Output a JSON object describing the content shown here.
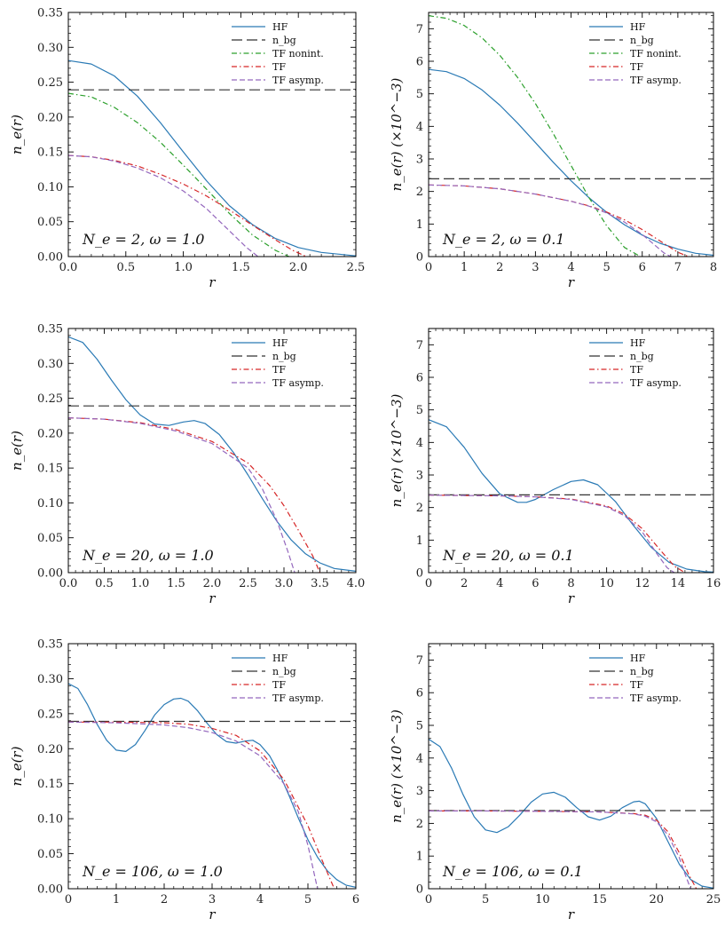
{
  "colors": {
    "HF": "#2a7ab5",
    "nbg": "#333333",
    "TF_nonint": "#2ca02c",
    "TF": "#d62728",
    "TF_asymp": "#9467bd"
  },
  "legend_labels": {
    "HF": "HF",
    "nbg": "n_bg",
    "TF_nonint": "TF nonint.",
    "TF": "TF",
    "TF_asymp": "TF asymp."
  },
  "chart_data": [
    {
      "type": "line",
      "id": "p11",
      "annotation": "N_e = 2,  ω = 1.0",
      "xlabel": "r",
      "ylabel": "n_e(r)",
      "xlim": [
        0,
        2.5
      ],
      "ylim": [
        0,
        0.35
      ],
      "xticks": [
        0,
        0.5,
        1.0,
        1.5,
        2.0,
        2.5
      ],
      "xtick_labels": [
        "0.0",
        "0.5",
        "1.0",
        "1.5",
        "2.0",
        "2.5"
      ],
      "yticks": [
        0,
        0.05,
        0.1,
        0.15,
        0.2,
        0.25,
        0.3,
        0.35
      ],
      "ytick_labels": [
        "0.00",
        "0.05",
        "0.10",
        "0.15",
        "0.20",
        "0.25",
        "0.30",
        "0.35"
      ],
      "legend": [
        "HF",
        "nbg",
        "TF_nonint",
        "TF",
        "TF_asymp"
      ],
      "series": [
        {
          "key": "HF",
          "x": [
            0,
            0.2,
            0.4,
            0.6,
            0.8,
            1.0,
            1.2,
            1.4,
            1.6,
            1.8,
            2.0,
            2.2,
            2.5
          ],
          "y": [
            0.281,
            0.276,
            0.259,
            0.23,
            0.192,
            0.15,
            0.109,
            0.073,
            0.046,
            0.026,
            0.013,
            0.006,
            0.001
          ]
        },
        {
          "key": "nbg",
          "x": [
            0,
            2.5
          ],
          "y": [
            0.239,
            0.239
          ]
        },
        {
          "key": "TF_nonint",
          "x": [
            0,
            0.2,
            0.4,
            0.6,
            0.8,
            1.0,
            1.2,
            1.4,
            1.6,
            1.8,
            1.92
          ],
          "y": [
            0.234,
            0.229,
            0.214,
            0.192,
            0.164,
            0.131,
            0.097,
            0.062,
            0.031,
            0.009,
            0.0
          ]
        },
        {
          "key": "TF",
          "x": [
            0,
            0.2,
            0.4,
            0.6,
            0.8,
            1.0,
            1.2,
            1.4,
            1.6,
            1.8,
            1.95,
            2.07
          ],
          "y": [
            0.145,
            0.143,
            0.138,
            0.13,
            0.118,
            0.104,
            0.087,
            0.067,
            0.045,
            0.024,
            0.009,
            0.0
          ]
        },
        {
          "key": "TF_asymp",
          "x": [
            0,
            0.2,
            0.4,
            0.6,
            0.8,
            1.0,
            1.2,
            1.4,
            1.55,
            1.65
          ],
          "y": [
            0.145,
            0.143,
            0.137,
            0.127,
            0.113,
            0.094,
            0.069,
            0.037,
            0.013,
            0.0
          ]
        }
      ]
    },
    {
      "type": "line",
      "id": "p12",
      "annotation": "N_e = 2,  ω = 0.1",
      "xlabel": "r",
      "ylabel": "n_e(r) (×10^−3)",
      "xlim": [
        0,
        8
      ],
      "ylim": [
        0,
        7.5
      ],
      "xticks": [
        0,
        1,
        2,
        3,
        4,
        5,
        6,
        7,
        8
      ],
      "xtick_labels": [
        "0",
        "1",
        "2",
        "3",
        "4",
        "5",
        "6",
        "7",
        "8"
      ],
      "yticks": [
        0,
        1,
        2,
        3,
        4,
        5,
        6,
        7
      ],
      "ytick_labels": [
        "0",
        "1",
        "2",
        "3",
        "4",
        "5",
        "6",
        "7"
      ],
      "legend": [
        "HF",
        "nbg",
        "TF_nonint",
        "TF",
        "TF_asymp"
      ],
      "series": [
        {
          "key": "HF",
          "x": [
            0,
            0.5,
            1,
            1.5,
            2,
            2.5,
            3,
            3.5,
            4,
            4.5,
            5,
            5.5,
            6,
            6.5,
            7,
            7.5,
            8
          ],
          "y": [
            5.75,
            5.68,
            5.47,
            5.12,
            4.65,
            4.1,
            3.5,
            2.9,
            2.33,
            1.81,
            1.36,
            0.98,
            0.66,
            0.41,
            0.23,
            0.1,
            0.04
          ]
        },
        {
          "key": "nbg",
          "x": [
            0,
            8
          ],
          "y": [
            2.39,
            2.39
          ]
        },
        {
          "key": "TF_nonint",
          "x": [
            0,
            0.5,
            1,
            1.5,
            2,
            2.5,
            3,
            3.5,
            4,
            4.5,
            5,
            5.5,
            5.95
          ],
          "y": [
            7.4,
            7.32,
            7.1,
            6.72,
            6.18,
            5.5,
            4.7,
            3.78,
            2.8,
            1.82,
            0.95,
            0.28,
            0.0
          ]
        },
        {
          "key": "TF",
          "x": [
            0,
            1,
            2,
            3,
            4,
            4.5,
            5,
            5.5,
            6,
            6.5,
            7,
            7.3
          ],
          "y": [
            2.2,
            2.17,
            2.08,
            1.92,
            1.7,
            1.56,
            1.37,
            1.13,
            0.83,
            0.48,
            0.13,
            0.0
          ]
        },
        {
          "key": "TF_asymp",
          "x": [
            0,
            1,
            2,
            3,
            4,
            4.5,
            5,
            5.5,
            6,
            6.3,
            6.6,
            6.8
          ],
          "y": [
            2.2,
            2.17,
            2.08,
            1.92,
            1.7,
            1.55,
            1.34,
            1.06,
            0.68,
            0.4,
            0.12,
            0.0
          ]
        }
      ]
    },
    {
      "type": "line",
      "id": "p21",
      "annotation": "N_e = 20,  ω = 1.0",
      "xlabel": "r",
      "ylabel": "n_e(r)",
      "xlim": [
        0,
        4.0
      ],
      "ylim": [
        0,
        0.35
      ],
      "xticks": [
        0,
        0.5,
        1.0,
        1.5,
        2.0,
        2.5,
        3.0,
        3.5,
        4.0
      ],
      "xtick_labels": [
        "0.0",
        "0.5",
        "1.0",
        "1.5",
        "2.0",
        "2.5",
        "3.0",
        "3.5",
        "4.0"
      ],
      "yticks": [
        0,
        0.05,
        0.1,
        0.15,
        0.2,
        0.25,
        0.3,
        0.35
      ],
      "ytick_labels": [
        "0.00",
        "0.05",
        "0.10",
        "0.15",
        "0.20",
        "0.25",
        "0.30",
        "0.35"
      ],
      "legend": [
        "HF",
        "nbg",
        "TF",
        "TF_asymp"
      ],
      "series": [
        {
          "key": "HF",
          "x": [
            0,
            0.2,
            0.4,
            0.6,
            0.8,
            1.0,
            1.2,
            1.4,
            1.6,
            1.75,
            1.9,
            2.1,
            2.3,
            2.5,
            2.7,
            2.9,
            3.1,
            3.3,
            3.5,
            3.7,
            4.0
          ],
          "y": [
            0.338,
            0.33,
            0.306,
            0.276,
            0.248,
            0.226,
            0.213,
            0.211,
            0.216,
            0.218,
            0.214,
            0.198,
            0.172,
            0.14,
            0.106,
            0.074,
            0.047,
            0.027,
            0.014,
            0.006,
            0.002
          ]
        },
        {
          "key": "nbg",
          "x": [
            0,
            4.0
          ],
          "y": [
            0.239,
            0.239
          ]
        },
        {
          "key": "TF",
          "x": [
            0,
            0.5,
            1.0,
            1.5,
            2.0,
            2.5,
            2.8,
            3.0,
            3.2,
            3.4,
            3.5
          ],
          "y": [
            0.222,
            0.22,
            0.215,
            0.205,
            0.188,
            0.157,
            0.125,
            0.096,
            0.061,
            0.024,
            0.0
          ]
        },
        {
          "key": "TF_asymp",
          "x": [
            0,
            0.5,
            1.0,
            1.5,
            2.0,
            2.5,
            2.7,
            2.9,
            3.05,
            3.15
          ],
          "y": [
            0.222,
            0.22,
            0.214,
            0.203,
            0.185,
            0.15,
            0.12,
            0.075,
            0.032,
            0.0
          ]
        }
      ]
    },
    {
      "type": "line",
      "id": "p22",
      "annotation": "N_e = 20,  ω = 0.1",
      "xlabel": "r",
      "ylabel": "n_e(r) (×10^−3)",
      "xlim": [
        0,
        16
      ],
      "ylim": [
        0,
        7.5
      ],
      "xticks": [
        0,
        2,
        4,
        6,
        8,
        10,
        12,
        14,
        16
      ],
      "xtick_labels": [
        "0",
        "2",
        "4",
        "6",
        "8",
        "10",
        "12",
        "14",
        "16"
      ],
      "yticks": [
        0,
        1,
        2,
        3,
        4,
        5,
        6,
        7
      ],
      "ytick_labels": [
        "0",
        "1",
        "2",
        "3",
        "4",
        "5",
        "6",
        "7"
      ],
      "legend": [
        "HF",
        "nbg",
        "TF",
        "TF_asymp"
      ],
      "series": [
        {
          "key": "HF",
          "x": [
            0,
            1,
            2,
            3,
            4,
            5,
            5.5,
            6,
            7,
            8,
            8.7,
            9.5,
            10.5,
            11.5,
            12.5,
            13.5,
            14.5,
            15.5,
            16
          ],
          "y": [
            4.7,
            4.48,
            3.85,
            3.05,
            2.42,
            2.16,
            2.16,
            2.25,
            2.55,
            2.8,
            2.85,
            2.7,
            2.18,
            1.45,
            0.78,
            0.32,
            0.11,
            0.03,
            0.02
          ]
        },
        {
          "key": "nbg",
          "x": [
            0,
            16
          ],
          "y": [
            2.39,
            2.39
          ]
        },
        {
          "key": "TF",
          "x": [
            0,
            2,
            4,
            6,
            8,
            10,
            11,
            12,
            13,
            13.8,
            14.4
          ],
          "y": [
            2.38,
            2.37,
            2.36,
            2.33,
            2.26,
            2.05,
            1.8,
            1.35,
            0.7,
            0.2,
            0.0
          ]
        },
        {
          "key": "TF_asymp",
          "x": [
            0,
            2,
            4,
            6,
            8,
            10,
            11,
            12,
            12.8,
            13.4,
            13.8
          ],
          "y": [
            2.38,
            2.37,
            2.36,
            2.33,
            2.25,
            2.02,
            1.75,
            1.25,
            0.6,
            0.15,
            0.0
          ]
        }
      ]
    },
    {
      "type": "line",
      "id": "p31",
      "annotation": "N_e = 106,  ω = 1.0",
      "xlabel": "r",
      "ylabel": "n_e(r)",
      "xlim": [
        0,
        6
      ],
      "ylim": [
        0,
        0.35
      ],
      "xticks": [
        0,
        1,
        2,
        3,
        4,
        5,
        6
      ],
      "xtick_labels": [
        "0",
        "1",
        "2",
        "3",
        "4",
        "5",
        "6"
      ],
      "yticks": [
        0,
        0.05,
        0.1,
        0.15,
        0.2,
        0.25,
        0.3,
        0.35
      ],
      "ytick_labels": [
        "0.00",
        "0.05",
        "0.10",
        "0.15",
        "0.20",
        "0.25",
        "0.30",
        "0.35"
      ],
      "legend": [
        "HF",
        "nbg",
        "TF",
        "TF_asymp"
      ],
      "series": [
        {
          "key": "HF",
          "x": [
            0,
            0.2,
            0.4,
            0.6,
            0.8,
            1.0,
            1.2,
            1.4,
            1.6,
            1.8,
            2.0,
            2.2,
            2.35,
            2.5,
            2.7,
            2.9,
            3.1,
            3.3,
            3.5,
            3.7,
            3.85,
            4.0,
            4.2,
            4.4,
            4.6,
            4.8,
            5.0,
            5.2,
            5.4,
            5.6,
            5.8,
            6.0
          ],
          "y": [
            0.293,
            0.286,
            0.263,
            0.235,
            0.212,
            0.198,
            0.196,
            0.206,
            0.226,
            0.248,
            0.263,
            0.271,
            0.272,
            0.268,
            0.254,
            0.236,
            0.22,
            0.21,
            0.208,
            0.211,
            0.212,
            0.206,
            0.19,
            0.165,
            0.134,
            0.101,
            0.07,
            0.045,
            0.026,
            0.013,
            0.005,
            0.002
          ]
        },
        {
          "key": "nbg",
          "x": [
            0,
            6
          ],
          "y": [
            0.239,
            0.239
          ]
        },
        {
          "key": "TF",
          "x": [
            0,
            1,
            2,
            2.5,
            3,
            3.5,
            4,
            4.5,
            5,
            5.3,
            5.55
          ],
          "y": [
            0.238,
            0.238,
            0.237,
            0.235,
            0.229,
            0.219,
            0.197,
            0.156,
            0.09,
            0.04,
            0.0
          ]
        },
        {
          "key": "TF_asymp",
          "x": [
            0,
            1,
            2,
            2.5,
            3,
            3.5,
            4,
            4.5,
            4.8,
            5.0,
            5.2
          ],
          "y": [
            0.238,
            0.237,
            0.234,
            0.23,
            0.223,
            0.211,
            0.19,
            0.15,
            0.11,
            0.062,
            0.0
          ]
        }
      ]
    },
    {
      "type": "line",
      "id": "p32",
      "annotation": "N_e = 106,  ω = 0.1",
      "xlabel": "r",
      "ylabel": "n_e(r) (×10^−3)",
      "xlim": [
        0,
        25
      ],
      "ylim": [
        0,
        7.5
      ],
      "xticks": [
        0,
        5,
        10,
        15,
        20,
        25
      ],
      "xtick_labels": [
        "0",
        "5",
        "10",
        "15",
        "20",
        "25"
      ],
      "yticks": [
        0,
        1,
        2,
        3,
        4,
        5,
        6,
        7
      ],
      "ytick_labels": [
        "0",
        "1",
        "2",
        "3",
        "4",
        "5",
        "6",
        "7"
      ],
      "legend": [
        "HF",
        "nbg",
        "TF",
        "TF_asymp"
      ],
      "series": [
        {
          "key": "HF",
          "x": [
            0,
            1,
            2,
            3,
            4,
            5,
            6,
            7,
            8,
            9,
            10,
            11,
            12,
            13,
            14,
            15,
            16,
            17,
            18,
            18.5,
            19,
            20,
            21,
            22,
            23,
            24,
            25
          ],
          "y": [
            4.58,
            4.35,
            3.7,
            2.9,
            2.2,
            1.8,
            1.72,
            1.9,
            2.25,
            2.65,
            2.9,
            2.95,
            2.8,
            2.48,
            2.2,
            2.1,
            2.22,
            2.48,
            2.66,
            2.68,
            2.6,
            2.15,
            1.45,
            0.75,
            0.28,
            0.08,
            0.02
          ]
        },
        {
          "key": "nbg",
          "x": [
            0,
            25
          ],
          "y": [
            2.39,
            2.39
          ]
        },
        {
          "key": "TF",
          "x": [
            0,
            5,
            10,
            15,
            18,
            19,
            20,
            21,
            22,
            22.8,
            23.5
          ],
          "y": [
            2.38,
            2.38,
            2.37,
            2.35,
            2.3,
            2.25,
            2.1,
            1.75,
            1.1,
            0.45,
            0.0
          ]
        },
        {
          "key": "TF_asymp",
          "x": [
            0,
            5,
            10,
            15,
            18,
            19,
            20,
            21,
            22,
            22.5,
            23
          ],
          "y": [
            2.38,
            2.38,
            2.37,
            2.35,
            2.29,
            2.22,
            2.05,
            1.65,
            0.95,
            0.45,
            0.0
          ]
        }
      ]
    }
  ]
}
